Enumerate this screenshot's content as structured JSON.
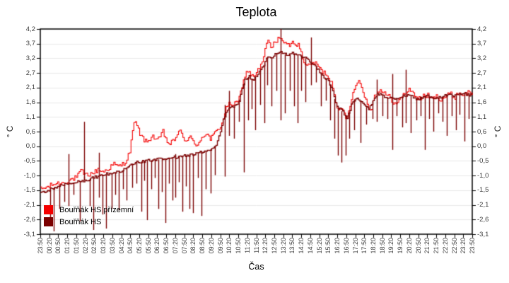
{
  "chart_data": {
    "type": "line",
    "title": "Teplota",
    "xlabel": "Čas",
    "ylabel": "° C",
    "ylabel_right": "° C",
    "grid": "horizontal",
    "legend_position": "bottom-left-inside",
    "x_unit": "hours from 23:50",
    "x_range": [
      0,
      24
    ],
    "ylim": [
      -3.1,
      4.2
    ],
    "y_tick_labels": [
      "4,2",
      "3,7",
      "3,2",
      "2,7",
      "2,1",
      "1,6",
      "1,1",
      "0,6",
      "0,0",
      "-0,5",
      "-1,0",
      "-1,5",
      "-2,1",
      "-2,6",
      "-3,1"
    ],
    "x_tick_labels": [
      "23:50",
      "00:20",
      "00:50",
      "01:20",
      "01:50",
      "02:20",
      "02:50",
      "03:20",
      "03:50",
      "04:20",
      "04:50",
      "05:20",
      "05:50",
      "06:20",
      "06:50",
      "07:20",
      "07:50",
      "08:20",
      "08:50",
      "09:20",
      "09:50",
      "10:20",
      "10:50",
      "11:20",
      "11:50",
      "12:20",
      "12:50",
      "13:20",
      "13:50",
      "14:20",
      "14:50",
      "15:20",
      "15:50",
      "16:20",
      "16:50",
      "17:20",
      "17:50",
      "18:20",
      "18:50",
      "19:20",
      "19:50",
      "20:20",
      "20:50",
      "21:20",
      "21:50",
      "22:20",
      "22:50",
      "23:20",
      "23:50"
    ],
    "series": [
      {
        "name": "Bouřňák HS přízemní",
        "color": "#f40000",
        "line_width": 1.1,
        "noise": 0.09,
        "keypoints": [
          [
            0,
            -1.5
          ],
          [
            0.4,
            -1.42
          ],
          [
            0.8,
            -1.3
          ],
          [
            1.2,
            -1.28
          ],
          [
            1.6,
            -1.18
          ],
          [
            2.0,
            -1.08
          ],
          [
            2.25,
            -0.85
          ],
          [
            2.5,
            -1.0
          ],
          [
            2.8,
            -0.95
          ],
          [
            3.0,
            -0.9
          ],
          [
            3.2,
            -0.8
          ],
          [
            3.5,
            -0.88
          ],
          [
            3.8,
            -0.75
          ],
          [
            4.05,
            -0.6
          ],
          [
            4.3,
            -0.7
          ],
          [
            4.55,
            -0.62
          ],
          [
            4.8,
            -0.45
          ],
          [
            5.0,
            -0.05
          ],
          [
            5.15,
            0.8
          ],
          [
            5.3,
            0.85
          ],
          [
            5.5,
            0.5
          ],
          [
            5.7,
            0.3
          ],
          [
            5.9,
            0.15
          ],
          [
            6.2,
            0.42
          ],
          [
            6.5,
            0.2
          ],
          [
            6.8,
            0.55
          ],
          [
            7.1,
            0.1
          ],
          [
            7.4,
            0.2
          ],
          [
            7.7,
            0.62
          ],
          [
            8.0,
            0.2
          ],
          [
            8.3,
            0.4
          ],
          [
            8.6,
            0.0
          ],
          [
            8.9,
            0.3
          ],
          [
            9.2,
            0.5
          ],
          [
            9.45,
            0.28
          ],
          [
            9.7,
            0.5
          ],
          [
            9.95,
            0.68
          ],
          [
            10.15,
            1.0
          ],
          [
            10.35,
            1.45
          ],
          [
            10.55,
            1.55
          ],
          [
            10.75,
            1.5
          ],
          [
            11.0,
            1.62
          ],
          [
            11.2,
            2.2
          ],
          [
            11.4,
            2.6
          ],
          [
            11.55,
            2.75
          ],
          [
            11.75,
            2.5
          ],
          [
            11.95,
            2.6
          ],
          [
            12.15,
            2.8
          ],
          [
            12.35,
            3.05
          ],
          [
            12.5,
            3.5
          ],
          [
            12.65,
            3.85
          ],
          [
            12.8,
            3.5
          ],
          [
            13.0,
            3.7
          ],
          [
            13.3,
            3.95
          ],
          [
            13.5,
            3.7
          ],
          [
            13.7,
            3.6
          ],
          [
            13.9,
            3.65
          ],
          [
            14.1,
            3.75
          ],
          [
            14.35,
            3.6
          ],
          [
            14.6,
            3.1
          ],
          [
            14.85,
            2.85
          ],
          [
            15.1,
            3.0
          ],
          [
            15.35,
            2.95
          ],
          [
            15.6,
            2.7
          ],
          [
            15.8,
            2.65
          ],
          [
            16.0,
            2.5
          ],
          [
            16.2,
            2.25
          ],
          [
            16.45,
            1.5
          ],
          [
            16.65,
            1.3
          ],
          [
            16.85,
            1.25
          ],
          [
            17.0,
            0.95
          ],
          [
            17.15,
            1.4
          ],
          [
            17.35,
            1.9
          ],
          [
            17.55,
            2.35
          ],
          [
            17.75,
            2.3
          ],
          [
            17.95,
            1.9
          ],
          [
            18.15,
            1.55
          ],
          [
            18.35,
            1.3
          ],
          [
            18.55,
            1.8
          ],
          [
            18.75,
            2.05
          ],
          [
            18.95,
            2.0
          ],
          [
            19.2,
            1.85
          ],
          [
            19.45,
            1.75
          ],
          [
            19.65,
            1.55
          ],
          [
            19.85,
            1.55
          ],
          [
            20.05,
            1.8
          ],
          [
            20.3,
            1.95
          ],
          [
            20.55,
            2.05
          ],
          [
            20.8,
            1.85
          ],
          [
            21.0,
            1.7
          ],
          [
            21.25,
            1.8
          ],
          [
            21.5,
            1.85
          ],
          [
            21.75,
            1.7
          ],
          [
            22.0,
            1.8
          ],
          [
            22.25,
            1.7
          ],
          [
            22.5,
            1.8
          ],
          [
            22.75,
            1.9
          ],
          [
            23.0,
            1.75
          ],
          [
            23.25,
            1.95
          ],
          [
            23.5,
            1.85
          ],
          [
            23.75,
            1.95
          ],
          [
            24,
            1.9
          ]
        ],
        "spikes": []
      },
      {
        "name": "Bouřňák HS",
        "color": "#7b0000",
        "line_width": 1.4,
        "noise": 0.05,
        "keypoints": [
          [
            0,
            -1.62
          ],
          [
            0.5,
            -1.52
          ],
          [
            1.0,
            -1.38
          ],
          [
            1.5,
            -1.32
          ],
          [
            2.0,
            -1.25
          ],
          [
            2.5,
            -1.18
          ],
          [
            3.0,
            -1.08
          ],
          [
            3.5,
            -0.98
          ],
          [
            4.0,
            -0.92
          ],
          [
            4.5,
            -0.85
          ],
          [
            4.9,
            -0.72
          ],
          [
            5.2,
            -0.58
          ],
          [
            5.5,
            -0.52
          ],
          [
            6.0,
            -0.48
          ],
          [
            6.5,
            -0.44
          ],
          [
            7.0,
            -0.42
          ],
          [
            7.5,
            -0.36
          ],
          [
            8.0,
            -0.32
          ],
          [
            8.5,
            -0.26
          ],
          [
            9.0,
            -0.16
          ],
          [
            9.4,
            -0.1
          ],
          [
            9.7,
            0.0
          ],
          [
            9.95,
            0.45
          ],
          [
            10.15,
            0.95
          ],
          [
            10.35,
            1.25
          ],
          [
            10.55,
            1.4
          ],
          [
            10.8,
            1.45
          ],
          [
            11.0,
            1.55
          ],
          [
            11.2,
            2.1
          ],
          [
            11.4,
            2.45
          ],
          [
            11.6,
            2.5
          ],
          [
            11.8,
            2.4
          ],
          [
            12.0,
            2.55
          ],
          [
            12.2,
            2.7
          ],
          [
            12.4,
            2.9
          ],
          [
            12.6,
            3.2
          ],
          [
            12.8,
            3.15
          ],
          [
            13.0,
            3.3
          ],
          [
            13.25,
            3.4
          ],
          [
            13.5,
            3.35
          ],
          [
            13.75,
            3.25
          ],
          [
            14.0,
            3.35
          ],
          [
            14.25,
            3.3
          ],
          [
            14.5,
            3.25
          ],
          [
            14.75,
            3.15
          ],
          [
            15.0,
            3.05
          ],
          [
            15.25,
            2.9
          ],
          [
            15.5,
            2.7
          ],
          [
            15.75,
            2.5
          ],
          [
            16.0,
            2.35
          ],
          [
            16.2,
            2.1
          ],
          [
            16.45,
            1.45
          ],
          [
            16.65,
            1.35
          ],
          [
            16.85,
            1.2
          ],
          [
            17.05,
            1.05
          ],
          [
            17.25,
            1.45
          ],
          [
            17.45,
            1.7
          ],
          [
            17.65,
            1.75
          ],
          [
            17.85,
            1.6
          ],
          [
            18.05,
            1.45
          ],
          [
            18.25,
            1.35
          ],
          [
            18.5,
            1.7
          ],
          [
            18.75,
            1.9
          ],
          [
            19.0,
            1.85
          ],
          [
            19.25,
            1.75
          ],
          [
            19.5,
            1.8
          ],
          [
            19.75,
            1.7
          ],
          [
            20.0,
            1.78
          ],
          [
            20.25,
            1.82
          ],
          [
            20.5,
            1.85
          ],
          [
            20.75,
            1.75
          ],
          [
            21.0,
            1.72
          ],
          [
            21.25,
            1.78
          ],
          [
            21.5,
            1.82
          ],
          [
            21.75,
            1.76
          ],
          [
            22.0,
            1.72
          ],
          [
            22.25,
            1.78
          ],
          [
            22.5,
            1.82
          ],
          [
            22.75,
            1.86
          ],
          [
            23.0,
            1.8
          ],
          [
            23.25,
            1.86
          ],
          [
            23.5,
            1.9
          ],
          [
            23.75,
            1.86
          ],
          [
            24,
            1.86
          ]
        ],
        "spikes": [
          [
            0.55,
            -2.6
          ],
          [
            0.75,
            -3.0
          ],
          [
            1.05,
            -2.2
          ],
          [
            1.35,
            -1.95
          ],
          [
            1.57,
            -2.1,
            -0.25
          ],
          [
            1.85,
            -1.7
          ],
          [
            2.2,
            -2.65
          ],
          [
            2.45,
            -1.05,
            0.9
          ],
          [
            2.75,
            -2.1
          ],
          [
            2.95,
            -2.95
          ],
          [
            3.26,
            -1.8,
            -0.2
          ],
          [
            3.45,
            -2.4
          ],
          [
            3.65,
            -2.9
          ],
          [
            3.95,
            -2.2
          ],
          [
            4.15,
            -1.7
          ],
          [
            4.35,
            -2.25
          ],
          [
            4.6,
            -1.5
          ],
          [
            4.8,
            -1.9
          ],
          [
            5.1,
            -1.45
          ],
          [
            5.35,
            -1.3
          ],
          [
            5.6,
            -2.3
          ],
          [
            5.78,
            -1.2
          ],
          [
            5.95,
            -2.6
          ],
          [
            6.15,
            -1.5
          ],
          [
            6.35,
            -1.1
          ],
          [
            6.55,
            -2.2
          ],
          [
            6.75,
            -1.6
          ],
          [
            6.95,
            -2.7
          ],
          [
            7.15,
            -1.3
          ],
          [
            7.35,
            -1.9
          ],
          [
            7.52,
            -1.8,
            -0.25
          ],
          [
            7.7,
            -1.25
          ],
          [
            7.9,
            -2.3
          ],
          [
            8.1,
            -1.4
          ],
          [
            8.28,
            -2.2
          ],
          [
            8.5,
            -2.35
          ],
          [
            8.75,
            -1.1
          ],
          [
            8.95,
            -2.45
          ],
          [
            9.2,
            -1.5
          ],
          [
            9.45,
            -1.65
          ],
          [
            9.7,
            -1.0
          ],
          [
            10.25,
            -1.05,
            1.5
          ],
          [
            10.5,
            0.4,
            2.0
          ],
          [
            10.75,
            0.3
          ],
          [
            11.05,
            0.9
          ],
          [
            11.3,
            -0.9
          ],
          [
            11.55,
            0.95
          ],
          [
            11.75,
            1.35
          ],
          [
            11.95,
            0.6
          ],
          [
            12.2,
            1.5
          ],
          [
            12.45,
            0.85
          ],
          [
            12.62,
            2.2
          ],
          [
            12.85,
            1.45
          ],
          [
            13.1,
            2.0
          ],
          [
            13.35,
            0.95,
            4.2
          ],
          [
            13.6,
            1.2
          ],
          [
            13.85,
            2.0
          ],
          [
            14.1,
            1.45
          ],
          [
            14.28,
            0.85
          ],
          [
            14.5,
            2.0
          ],
          [
            14.72,
            1.6
          ],
          [
            15.05,
            2.2,
            3.9
          ],
          [
            15.3,
            2.3
          ],
          [
            15.6,
            1.45
          ],
          [
            15.85,
            1.65
          ],
          [
            16.1,
            0.95
          ],
          [
            16.35,
            0.3
          ],
          [
            16.55,
            -0.3
          ],
          [
            16.75,
            -0.55
          ],
          [
            16.95,
            -0.3
          ],
          [
            17.15,
            0.3
          ],
          [
            17.45,
            0.6
          ],
          [
            17.8,
            0.15
          ],
          [
            18.1,
            0.8
          ],
          [
            18.45,
            1.0
          ],
          [
            18.7,
            0.9,
            2.4
          ],
          [
            19.0,
            1.1
          ],
          [
            19.3,
            1.0
          ],
          [
            19.55,
            -0.1,
            2.6
          ],
          [
            19.8,
            1.1
          ],
          [
            20.1,
            0.7
          ],
          [
            20.32,
            0.85,
            2.75
          ],
          [
            20.6,
            0.5
          ],
          [
            20.9,
            0.95
          ],
          [
            21.15,
            1.1
          ],
          [
            21.38,
            -0.1
          ],
          [
            21.6,
            1.0
          ],
          [
            21.85,
            0.55
          ],
          [
            22.1,
            1.2
          ],
          [
            22.35,
            0.9
          ],
          [
            22.6,
            0.4
          ],
          [
            22.85,
            1.1
          ],
          [
            23.1,
            0.6
          ],
          [
            23.3,
            1.15
          ],
          [
            23.55,
            0.2
          ],
          [
            23.8,
            1.0
          ]
        ]
      }
    ]
  }
}
